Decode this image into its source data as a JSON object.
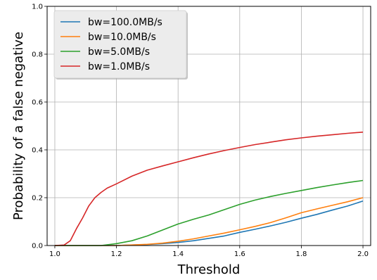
{
  "chart_data": {
    "type": "line",
    "title": "",
    "xlabel": "Threshold",
    "ylabel": "Probability of a false negative",
    "xlim": [
      0.975,
      2.025
    ],
    "ylim": [
      0.0,
      1.0
    ],
    "xticks": [
      1.0,
      1.2,
      1.4,
      1.6,
      1.8,
      2.0
    ],
    "xtick_labels": [
      "1.0",
      "1.2",
      "1.4",
      "1.6",
      "1.8",
      "2.0"
    ],
    "yticks": [
      0.0,
      0.2,
      0.4,
      0.6,
      0.8,
      1.0
    ],
    "ytick_labels": [
      "0.0",
      "0.2",
      "0.4",
      "0.6",
      "0.8",
      "1.0"
    ],
    "grid": true,
    "legend_position": "top-left",
    "series": [
      {
        "name": "bw=100.0MB/s",
        "color": "#1f77b4",
        "x": [
          1.0,
          1.2,
          1.3,
          1.35,
          1.4,
          1.45,
          1.5,
          1.55,
          1.6,
          1.65,
          1.7,
          1.75,
          1.8,
          1.85,
          1.9,
          1.95,
          2.0
        ],
        "y": [
          0.0,
          0.0,
          0.004,
          0.008,
          0.013,
          0.02,
          0.03,
          0.04,
          0.055,
          0.068,
          0.082,
          0.097,
          0.114,
          0.13,
          0.148,
          0.165,
          0.186
        ]
      },
      {
        "name": "bw=10.0MB/s",
        "color": "#ff7f0e",
        "x": [
          1.0,
          1.2,
          1.3,
          1.35,
          1.4,
          1.45,
          1.5,
          1.55,
          1.6,
          1.65,
          1.7,
          1.75,
          1.8,
          1.85,
          1.9,
          1.95,
          2.0
        ],
        "y": [
          0.0,
          0.0,
          0.005,
          0.01,
          0.018,
          0.028,
          0.04,
          0.052,
          0.066,
          0.08,
          0.096,
          0.116,
          0.137,
          0.153,
          0.168,
          0.183,
          0.2
        ]
      },
      {
        "name": "bw=5.0MB/s",
        "color": "#2ca02c",
        "x": [
          1.0,
          1.15,
          1.2,
          1.25,
          1.3,
          1.35,
          1.4,
          1.45,
          1.5,
          1.55,
          1.6,
          1.65,
          1.7,
          1.75,
          1.8,
          1.85,
          1.9,
          1.95,
          2.0
        ],
        "y": [
          0.0,
          0.0,
          0.008,
          0.02,
          0.04,
          0.065,
          0.09,
          0.11,
          0.128,
          0.15,
          0.172,
          0.19,
          0.205,
          0.218,
          0.23,
          0.242,
          0.253,
          0.263,
          0.272
        ]
      },
      {
        "name": "bw=1.0MB/s",
        "color": "#d62728",
        "x": [
          1.0,
          1.03,
          1.05,
          1.07,
          1.09,
          1.11,
          1.13,
          1.15,
          1.17,
          1.2,
          1.25,
          1.3,
          1.35,
          1.4,
          1.45,
          1.5,
          1.55,
          1.6,
          1.65,
          1.7,
          1.75,
          1.8,
          1.85,
          1.9,
          1.95,
          2.0
        ],
        "y": [
          0.0,
          0.002,
          0.02,
          0.07,
          0.115,
          0.165,
          0.2,
          0.222,
          0.24,
          0.258,
          0.29,
          0.315,
          0.333,
          0.35,
          0.367,
          0.383,
          0.397,
          0.41,
          0.422,
          0.432,
          0.442,
          0.45,
          0.457,
          0.463,
          0.469,
          0.474
        ]
      }
    ]
  }
}
